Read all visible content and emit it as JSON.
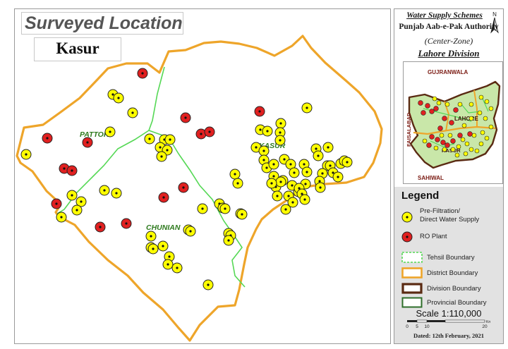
{
  "title": "Surveyed Location",
  "district": "Kasur",
  "colors": {
    "pre_filtration": "#ffff00",
    "ro_plant": "#e02020",
    "tehsil_boundary": "#55d855",
    "district_boundary": "#eea52a",
    "division_boundary": "#5a2a12",
    "provincial_boundary": "#2e6e2a",
    "division_fill": "#c9e7a9"
  },
  "tehsils": [
    {
      "id": "pattoki",
      "name": "PATTOKI"
    },
    {
      "id": "kasur",
      "name": "KASUR"
    },
    {
      "id": "chunian",
      "name": "CHUNIAN"
    }
  ],
  "sidebar": {
    "header": {
      "line1": "Water Supply Schemes",
      "line2": "Punjab Aab-e-Pak Authority",
      "line3": "(Center-Zone)",
      "line4": "Lahore Division"
    },
    "north_label": "N",
    "inset": {
      "labels": {
        "gujranwala": "GUJRANWALA",
        "faisalabad": "FAISALABAD",
        "lahore": "LAHORE",
        "kasur": "KASUR",
        "sahiwal": "SAHIWAL"
      }
    },
    "legend": {
      "title": "Legend",
      "items": [
        {
          "id": "pre",
          "label": "Pre-Filtration/\nDirect Water Supply"
        },
        {
          "id": "ro",
          "label": "RO Plant"
        },
        {
          "id": "tehsil",
          "label": "Tehsil Boundary"
        },
        {
          "id": "district",
          "label": "District Boundary"
        },
        {
          "id": "division",
          "label": "Division Boundary"
        },
        {
          "id": "provincial",
          "label": "Provincial Boundary"
        }
      ]
    },
    "scale": {
      "label": "Scale 1:110,000",
      "ticks": [
        "0",
        "5",
        "10",
        "20"
      ],
      "unit": "Km"
    },
    "dated": "Dated: 12th February, 2021"
  }
}
